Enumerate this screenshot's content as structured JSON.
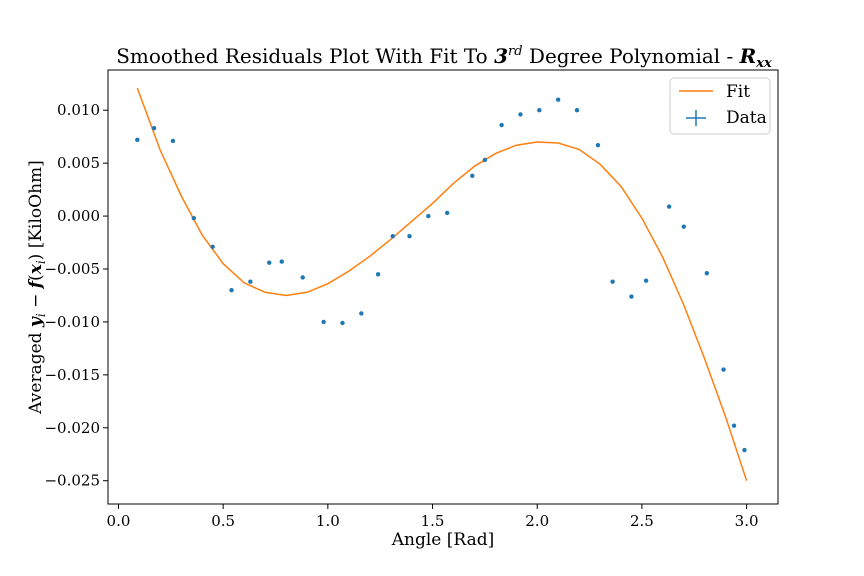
{
  "chart_data": {
    "type": "scatter",
    "title": "Smoothed Residuals Plot With Fit To 3rd Degree Polynomial - Rxx",
    "xlabel": "Angle [Rad]",
    "ylabel": "Averaged y_i − f(x_i) [KiloOhm]",
    "xlim": [
      -0.05,
      3.15
    ],
    "ylim": [
      -0.0272,
      0.0138
    ],
    "x_ticks": [
      0.0,
      0.5,
      1.0,
      1.5,
      2.0,
      2.5,
      3.0
    ],
    "x_tick_labels": [
      "0.0",
      "0.5",
      "1.0",
      "1.5",
      "2.0",
      "2.5",
      "3.0"
    ],
    "y_ticks": [
      0.01,
      0.005,
      0.0,
      -0.005,
      -0.01,
      -0.015,
      -0.02,
      -0.025
    ],
    "y_tick_labels": [
      "0.010",
      "0.005",
      "0.000",
      "−0.005",
      "−0.010",
      "−0.015",
      "−0.020",
      "−0.025"
    ],
    "grid": false,
    "legend_position": "upper right",
    "colors": {
      "fit": "#ff7f0e",
      "data": "#1f77b4"
    },
    "series": [
      {
        "name": "Fit",
        "kind": "line",
        "x": [
          0.09,
          0.2,
          0.3,
          0.4,
          0.5,
          0.6,
          0.7,
          0.8,
          0.9,
          1.0,
          1.1,
          1.2,
          1.3,
          1.4,
          1.5,
          1.6,
          1.7,
          1.8,
          1.9,
          2.0,
          2.1,
          2.2,
          2.3,
          2.4,
          2.5,
          2.6,
          2.7,
          2.8,
          2.9,
          3.0
        ],
        "y": [
          0.0121,
          0.0062,
          0.0019,
          -0.0018,
          -0.0045,
          -0.0063,
          -0.0072,
          -0.0075,
          -0.0072,
          -0.0064,
          -0.0052,
          -0.0038,
          -0.0022,
          -0.0005,
          0.0012,
          0.0031,
          0.0047,
          0.0059,
          0.0067,
          0.007,
          0.0069,
          0.0063,
          0.0049,
          0.0028,
          -0.0002,
          -0.0039,
          -0.0084,
          -0.0135,
          -0.019,
          -0.025
        ]
      },
      {
        "name": "Data",
        "kind": "scatter",
        "x": [
          0.09,
          0.17,
          0.26,
          0.36,
          0.45,
          0.54,
          0.63,
          0.72,
          0.78,
          0.88,
          0.98,
          1.07,
          1.16,
          1.24,
          1.31,
          1.39,
          1.48,
          1.57,
          1.69,
          1.75,
          1.83,
          1.92,
          2.01,
          2.1,
          2.19,
          2.29,
          2.36,
          2.45,
          2.52,
          2.63,
          2.7,
          2.81,
          2.89,
          2.94,
          2.99
        ],
        "y": [
          0.0072,
          0.0083,
          0.0071,
          -0.0002,
          -0.0029,
          -0.007,
          -0.0062,
          -0.0044,
          -0.0043,
          -0.0058,
          -0.01,
          -0.0101,
          -0.0092,
          -0.0055,
          -0.0019,
          -0.0019,
          0.0,
          0.0003,
          0.0038,
          0.0053,
          0.0086,
          0.0096,
          0.01,
          0.011,
          0.01,
          0.0067,
          -0.0062,
          -0.0076,
          -0.0061,
          0.0009,
          -0.001,
          -0.0054,
          -0.0145,
          -0.0198,
          -0.0221
        ]
      }
    ]
  }
}
